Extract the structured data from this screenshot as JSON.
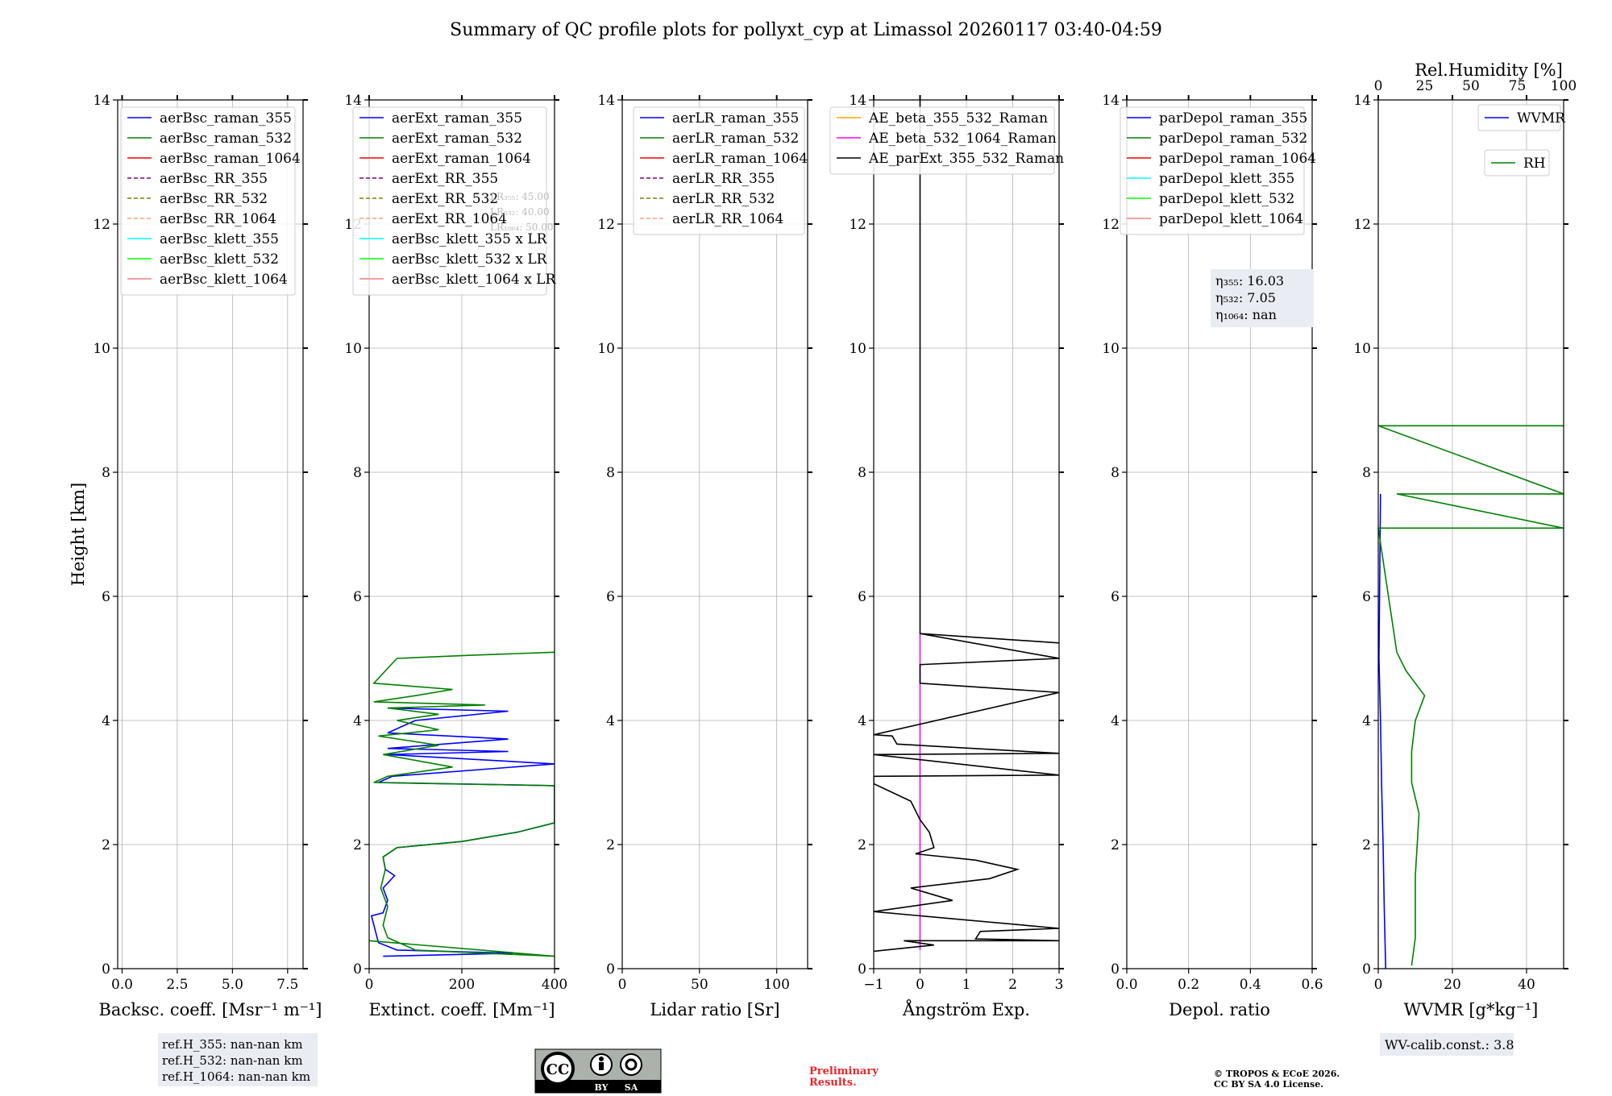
{
  "title": "Summary of QC profile plots for pollyxt_cyp at Limassol 20260117 03:40-04:59",
  "colors": {
    "blue": "#0000ff",
    "green": "#008000",
    "red": "#ff0000",
    "purple": "#800080",
    "olive": "#808000",
    "salmon": "#ffa07a",
    "cyan": "#00ffff",
    "lime": "#00ff00",
    "lightcoral": "#f08080",
    "orange": "#ffa500",
    "magenta": "#ff00ff",
    "black": "#000000"
  },
  "chart_data": [
    {
      "id": "bsc",
      "type": "line",
      "xlabel": "Backsc. coeff. [Msr⁻¹ m⁻¹]",
      "ylabel": "Height [km]",
      "xlim": [
        -0.2,
        8.2
      ],
      "ylim": [
        0,
        14
      ],
      "xticks": [
        0.0,
        2.5,
        5.0,
        7.5
      ],
      "xticklabels": [
        "0.0",
        "2.5",
        "5.0",
        "7.5"
      ],
      "yticks": [
        0,
        2,
        4,
        6,
        8,
        10,
        12,
        14
      ],
      "legend_position": "top-left",
      "legend": [
        {
          "label": "aerBsc_raman_355",
          "color": "#0000ff",
          "dash": false
        },
        {
          "label": "aerBsc_raman_532",
          "color": "#008000",
          "dash": false
        },
        {
          "label": "aerBsc_raman_1064",
          "color": "#ff0000",
          "dash": false
        },
        {
          "label": "aerBsc_RR_355",
          "color": "#800080",
          "dash": true
        },
        {
          "label": "aerBsc_RR_532",
          "color": "#808000",
          "dash": true
        },
        {
          "label": "aerBsc_RR_1064",
          "color": "#ffa07a",
          "dash": true
        },
        {
          "label": "aerBsc_klett_355",
          "color": "#00ffff",
          "dash": false
        },
        {
          "label": "aerBsc_klett_532",
          "color": "#00ff00",
          "dash": false
        },
        {
          "label": "aerBsc_klett_1064",
          "color": "#f08080",
          "dash": false
        }
      ],
      "series": []
    },
    {
      "id": "ext",
      "type": "line",
      "xlabel": "Extinct. coeff. [Mm⁻¹]",
      "xlim": [
        0,
        400
      ],
      "ylim": [
        0,
        14
      ],
      "xticks": [
        0,
        200,
        400
      ],
      "xticklabels": [
        "0",
        "200",
        "400"
      ],
      "yticks": [
        0,
        2,
        4,
        6,
        8,
        10,
        12,
        14
      ],
      "legend_position": "top-left",
      "legend": [
        {
          "label": "aerExt_raman_355",
          "color": "#0000ff",
          "dash": false
        },
        {
          "label": "aerExt_raman_532",
          "color": "#008000",
          "dash": false
        },
        {
          "label": "aerExt_raman_1064",
          "color": "#ff0000",
          "dash": false
        },
        {
          "label": "aerExt_RR_355",
          "color": "#800080",
          "dash": true
        },
        {
          "label": "aerExt_RR_532",
          "color": "#808000",
          "dash": true
        },
        {
          "label": "aerExt_RR_1064",
          "color": "#ffa07a",
          "dash": true
        },
        {
          "label": "aerBsc_klett_355 x LR",
          "color": "#00ffff",
          "dash": false
        },
        {
          "label": "aerBsc_klett_532 x LR",
          "color": "#00ff00",
          "dash": false
        },
        {
          "label": "aerBsc_klett_1064 x LR",
          "color": "#f08080",
          "dash": false
        }
      ],
      "lr_annotation": [
        "LR₃₅₅: 45.00",
        "LR₅₃₂: 40.00",
        "LR₁₀₆₄: 50.00"
      ],
      "series": [
        {
          "name": "aerExt_raman_355",
          "color": "#0000ff",
          "points": [
            [
              30,
              0.2
            ],
            [
              310,
              0.25
            ],
            [
              60,
              0.3
            ],
            [
              20,
              0.42
            ],
            [
              5,
              0.85
            ],
            [
              30,
              0.9
            ],
            [
              40,
              1.1
            ],
            [
              30,
              1.3
            ],
            [
              55,
              1.5
            ],
            [
              35,
              1.6
            ],
            [
              30,
              1.8
            ],
            [
              60,
              1.95
            ],
            [
              200,
              2.05
            ],
            [
              320,
              2.2
            ],
            [
              400,
              2.35
            ],
            [
              400,
              2.95
            ],
            [
              20,
              3.0
            ],
            [
              50,
              3.1
            ],
            [
              400,
              3.3
            ],
            [
              40,
              3.45
            ],
            [
              300,
              3.5
            ],
            [
              40,
              3.55
            ],
            [
              300,
              3.7
            ],
            [
              40,
              3.8
            ],
            [
              100,
              4.0
            ],
            [
              300,
              4.15
            ],
            [
              40,
              4.2
            ]
          ]
        },
        {
          "name": "aerExt_raman_532",
          "color": "#008000",
          "points": [
            [
              0,
              0.45
            ],
            [
              400,
              0.2
            ],
            [
              100,
              0.3
            ],
            [
              40,
              0.5
            ],
            [
              30,
              0.7
            ],
            [
              40,
              1.0
            ],
            [
              25,
              1.3
            ],
            [
              35,
              1.6
            ],
            [
              30,
              1.8
            ],
            [
              60,
              1.95
            ],
            [
              200,
              2.05
            ],
            [
              320,
              2.2
            ],
            [
              400,
              2.35
            ],
            [
              400,
              2.95
            ],
            [
              10,
              3.0
            ],
            [
              40,
              3.1
            ],
            [
              180,
              3.25
            ],
            [
              30,
              3.45
            ],
            [
              150,
              3.6
            ],
            [
              20,
              3.75
            ],
            [
              150,
              3.85
            ],
            [
              60,
              4.0
            ],
            [
              150,
              4.1
            ],
            [
              40,
              4.2
            ],
            [
              250,
              4.25
            ],
            [
              10,
              4.3
            ],
            [
              100,
              4.4
            ],
            [
              180,
              4.5
            ],
            [
              10,
              4.6
            ],
            [
              60,
              5.0
            ],
            [
              220,
              5.05
            ],
            [
              400,
              5.1
            ]
          ]
        }
      ]
    },
    {
      "id": "lr",
      "type": "line",
      "xlabel": "Lidar ratio [Sr]",
      "xlim": [
        0,
        120
      ],
      "ylim": [
        0,
        14
      ],
      "xticks": [
        0,
        50,
        100
      ],
      "xticklabels": [
        "0",
        "50",
        "100"
      ],
      "yticks": [
        0,
        2,
        4,
        6,
        8,
        10,
        12,
        14
      ],
      "legend_position": "top-left",
      "legend": [
        {
          "label": "aerLR_raman_355",
          "color": "#0000ff",
          "dash": false
        },
        {
          "label": "aerLR_raman_532",
          "color": "#008000",
          "dash": false
        },
        {
          "label": "aerLR_raman_1064",
          "color": "#ff0000",
          "dash": false
        },
        {
          "label": "aerLR_RR_355",
          "color": "#800080",
          "dash": true
        },
        {
          "label": "aerLR_RR_532",
          "color": "#808000",
          "dash": true
        },
        {
          "label": "aerLR_RR_1064",
          "color": "#ffa07a",
          "dash": true
        }
      ],
      "series": []
    },
    {
      "id": "ae",
      "type": "line",
      "xlabel": "Ångström Exp.",
      "xlim": [
        -1,
        3
      ],
      "ylim": [
        0,
        14
      ],
      "xticks": [
        -1,
        0,
        1,
        2,
        3
      ],
      "xticklabels": [
        "−1",
        "0",
        "1",
        "2",
        "3"
      ],
      "yticks": [
        0,
        2,
        4,
        6,
        8,
        10,
        12,
        14
      ],
      "legend_position": "top-left",
      "legend": [
        {
          "label": "AE_beta_355_532_Raman",
          "color": "#ffa500",
          "dash": false
        },
        {
          "label": "AE_beta_532_1064_Raman",
          "color": "#ff00ff",
          "dash": false
        },
        {
          "label": "AE_parExt_355_532_Raman",
          "color": "#000000",
          "dash": false
        }
      ],
      "series": [
        {
          "name": "AE_beta_532_1064_Raman",
          "color": "#ff00ff",
          "points": [
            [
              0,
              0.3
            ],
            [
              0,
              5.4
            ]
          ]
        },
        {
          "name": "AE_parExt_355_532_Raman",
          "color": "#000000",
          "points": [
            [
              -1,
              0.28
            ],
            [
              0.3,
              0.38
            ],
            [
              -0.35,
              0.45
            ],
            [
              3,
              0.45
            ],
            [
              1.2,
              0.48
            ],
            [
              1.3,
              0.6
            ],
            [
              3,
              0.65
            ],
            [
              3,
              0.65
            ],
            [
              -1,
              0.92
            ],
            [
              0.7,
              1.1
            ],
            [
              -0.2,
              1.3
            ],
            [
              1.5,
              1.45
            ],
            [
              2.1,
              1.6
            ],
            [
              1.2,
              1.75
            ],
            [
              -0.1,
              1.85
            ],
            [
              0.3,
              1.95
            ],
            [
              0.2,
              2.2
            ],
            [
              0,
              2.4
            ],
            [
              -0.2,
              2.7
            ],
            [
              -1,
              2.98
            ],
            [
              -1,
              3.1
            ],
            [
              3,
              3.12
            ],
            [
              -1,
              3.45
            ],
            [
              3,
              3.47
            ],
            [
              -0.5,
              3.62
            ],
            [
              -0.6,
              3.75
            ],
            [
              -1,
              3.77
            ],
            [
              3,
              4.45
            ],
            [
              0,
              4.6
            ],
            [
              0,
              4.9
            ],
            [
              3,
              5.0
            ],
            [
              0,
              5.4
            ],
            [
              3,
              5.25
            ],
            [
              0,
              5.4
            ],
            [
              0,
              14
            ]
          ]
        }
      ]
    },
    {
      "id": "depol",
      "type": "line",
      "xlabel": "Depol. ratio",
      "xlim": [
        0,
        0.6
      ],
      "ylim": [
        0,
        14
      ],
      "xticks": [
        0,
        0.2,
        0.4,
        0.6
      ],
      "xticklabels": [
        "0.0",
        "0.2",
        "0.4",
        "0.6"
      ],
      "yticks": [
        0,
        2,
        4,
        6,
        8,
        10,
        12,
        14
      ],
      "legend_position": "top-left",
      "legend": [
        {
          "label": "parDepol_raman_355",
          "color": "#0000ff",
          "dash": false
        },
        {
          "label": "parDepol_raman_532",
          "color": "#008000",
          "dash": false
        },
        {
          "label": "parDepol_raman_1064",
          "color": "#ff0000",
          "dash": false
        },
        {
          "label": "parDepol_klett_355",
          "color": "#00ffff",
          "dash": false
        },
        {
          "label": "parDepol_klett_532",
          "color": "#00ff00",
          "dash": false
        },
        {
          "label": "parDepol_klett_1064",
          "color": "#f08080",
          "dash": false
        }
      ],
      "eta_annotation": [
        "η₃₅₅: 16.03",
        "η₅₃₂: 7.05",
        "η₁₀₆₄: nan"
      ],
      "series": []
    },
    {
      "id": "wv",
      "type": "line",
      "xlabel": "WVMR [g*kg⁻¹]",
      "top_xlabel": "Rel.Humidity [%]",
      "xlim": [
        0,
        50
      ],
      "ylim": [
        0,
        14
      ],
      "xticks": [
        0,
        20,
        40
      ],
      "xticklabels": [
        "0",
        "20",
        "40"
      ],
      "top_xlim": [
        0,
        100
      ],
      "top_xticks": [
        0,
        25,
        50,
        75,
        100
      ],
      "top_xticklabels": [
        "0",
        "25",
        "50",
        "75",
        "100"
      ],
      "yticks": [
        0,
        2,
        4,
        6,
        8,
        10,
        12,
        14
      ],
      "legend": [
        {
          "label": "WVMR",
          "color": "#0000ff",
          "dash": false
        },
        {
          "label": "RH",
          "color": "#008000",
          "dash": false
        }
      ],
      "series": [
        {
          "name": "WVMR",
          "color": "#0000ff",
          "axis": "bottom",
          "points": [
            [
              2,
              0
            ],
            [
              1.6,
              1
            ],
            [
              1.3,
              2
            ],
            [
              0.9,
              3
            ],
            [
              0.6,
              4
            ],
            [
              0.4,
              4.5
            ],
            [
              0.2,
              5.0
            ],
            [
              0.6,
              7.65
            ]
          ]
        },
        {
          "name": "RH",
          "color": "#008000",
          "axis": "top",
          "points": [
            [
              18,
              0.05
            ],
            [
              20,
              0.5
            ],
            [
              20,
              1.5
            ],
            [
              22,
              2.5
            ],
            [
              18,
              3.0
            ],
            [
              18,
              3.5
            ],
            [
              20,
              4.0
            ],
            [
              25,
              4.4
            ],
            [
              15,
              4.8
            ],
            [
              10,
              5.1
            ],
            [
              0,
              7.1
            ],
            [
              100,
              7.1
            ],
            [
              10,
              7.65
            ],
            [
              100,
              7.65
            ],
            [
              0,
              8.75
            ],
            [
              100,
              8.75
            ]
          ]
        }
      ],
      "calib": "WV-calib.const.: 3.8"
    }
  ],
  "footer": {
    "refh": [
      "ref.H_355: nan-nan km",
      "ref.H_532: nan-nan km",
      "ref.H_1064: nan-nan km"
    ],
    "license_badge": {
      "cc": "CC",
      "by": "BY",
      "sa": "SA"
    },
    "preliminary": [
      "Preliminary",
      "Results."
    ],
    "copyright": [
      "© TROPOS & ECoE 2026.",
      "CC BY SA 4.0 License."
    ]
  }
}
